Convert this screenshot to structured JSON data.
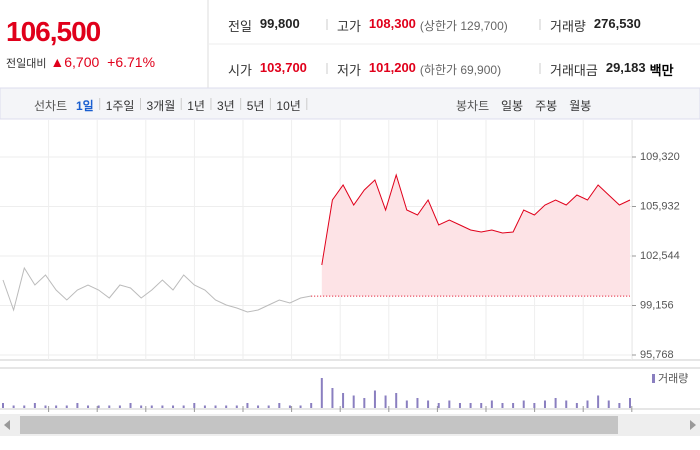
{
  "header": {
    "price": "106,500",
    "change_label": "전일대비",
    "change": "6,700",
    "change_pct": "+6.71%",
    "stats": [
      {
        "label": "전일",
        "value": "99,800",
        "color": "#222"
      },
      {
        "label": "고가",
        "value": "108,300",
        "note": "(상한가 129,700)",
        "color": "#e0001b"
      },
      {
        "label": "거래량",
        "value": "276,530",
        "color": "#222"
      },
      {
        "label": "시가",
        "value": "103,700",
        "color": "#e0001b"
      },
      {
        "label": "저가",
        "value": "101,200",
        "note": "(하한가 69,900)",
        "color": "#e0001b"
      },
      {
        "label": "거래대금",
        "value": "29,183",
        "unit": "백만",
        "color": "#222"
      }
    ]
  },
  "tabs": {
    "line_label": "선차트",
    "line": [
      "1일",
      "1주일",
      "3개월",
      "1년",
      "3년",
      "5년",
      "10년"
    ],
    "candle_label": "봉차트",
    "candle": [
      "일봉",
      "주봉",
      "월봉"
    ]
  },
  "chart_data": {
    "type": "line",
    "ylim": [
      95768,
      111373
    ],
    "yticks": [
      {
        "value": 95768,
        "label": "95,768"
      },
      {
        "value": 99156,
        "label": "99,156"
      },
      {
        "value": 102544,
        "label": "102,544"
      },
      {
        "value": 105932,
        "label": "105,932"
      },
      {
        "value": 109320,
        "label": "109,320"
      }
    ],
    "reference": 99800,
    "series": [
      {
        "color": "#bbbbbb",
        "values": [
          100901,
          98848,
          101722,
          100559,
          101243,
          100217,
          99532,
          100217,
          100559,
          100217,
          99669,
          100559,
          100353,
          99669,
          100217,
          100901,
          100217,
          101243,
          100559,
          100217,
          99532,
          99190,
          98985,
          98711,
          98848,
          99190,
          99532,
          99327,
          99669,
          99806,
          null,
          null,
          null,
          null,
          null,
          null,
          null,
          null,
          null,
          null,
          null,
          null,
          null,
          null,
          null,
          null,
          null,
          null,
          null,
          null,
          null,
          null,
          null,
          null,
          null,
          null,
          null,
          null,
          null,
          null
        ]
      },
      {
        "color": "#e0001b",
        "values": [
          null,
          null,
          null,
          null,
          null,
          null,
          null,
          null,
          null,
          null,
          null,
          null,
          null,
          null,
          null,
          null,
          null,
          null,
          null,
          null,
          null,
          null,
          null,
          null,
          null,
          null,
          null,
          null,
          null,
          null,
          101928,
          106376,
          107403,
          106034,
          107061,
          107745,
          105692,
          108087,
          105692,
          105350,
          106376,
          104665,
          105007,
          104665,
          104323,
          104187,
          104323,
          104118,
          104187,
          105692,
          105350,
          106034,
          106376,
          106034,
          106718,
          106376,
          107403,
          106718,
          106034,
          106376
        ]
      }
    ],
    "volume": {
      "name": "거래량",
      "color": "#8a7fc0",
      "values": [
        2,
        1,
        1,
        2,
        1,
        1,
        1,
        2,
        1,
        1,
        1,
        1,
        2,
        1,
        1,
        1,
        1,
        1,
        2,
        1,
        1,
        1,
        1,
        2,
        1,
        1,
        2,
        1,
        1,
        2,
        12,
        8,
        6,
        5,
        4,
        7,
        5,
        6,
        3,
        4,
        3,
        2,
        3,
        2,
        2,
        2,
        3,
        2,
        2,
        3,
        2,
        3,
        4,
        3,
        2,
        3,
        5,
        3,
        2,
        4
      ]
    }
  }
}
